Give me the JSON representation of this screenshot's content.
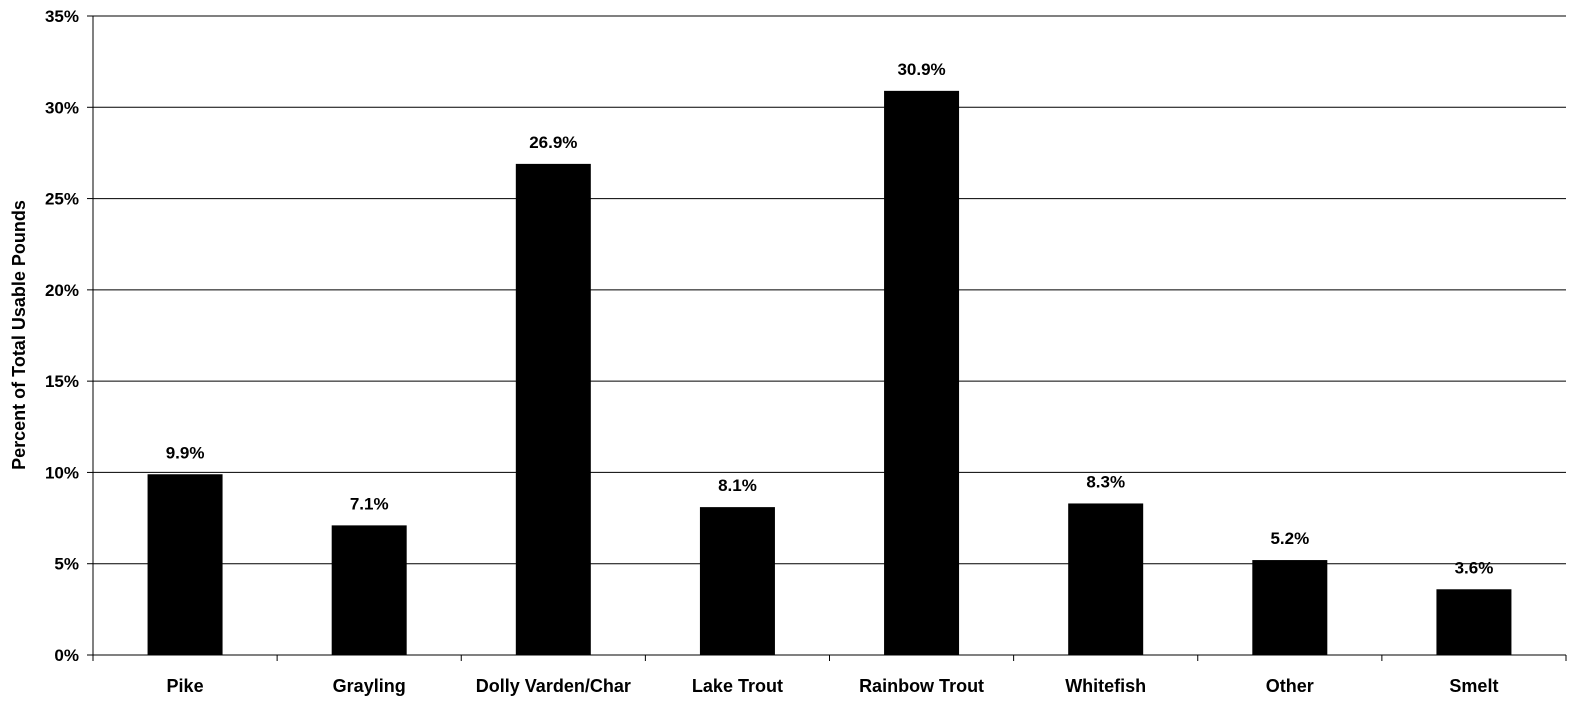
{
  "chart_data": {
    "type": "bar",
    "title": "",
    "xlabel": "",
    "ylabel": "Percent of Total Usable Pounds",
    "ylim": [
      0,
      35
    ],
    "y_ticks": [
      0,
      5,
      10,
      15,
      20,
      25,
      30,
      35
    ],
    "y_tick_labels": [
      "0%",
      "5%",
      "10%",
      "15%",
      "20%",
      "25%",
      "30%",
      "35%"
    ],
    "categories": [
      "Pike",
      "Grayling",
      "Dolly Varden/Char",
      "Lake Trout",
      "Rainbow Trout",
      "Whitefish",
      "Other",
      "Smelt"
    ],
    "values": [
      9.9,
      7.1,
      26.9,
      8.1,
      30.9,
      8.3,
      5.2,
      3.6
    ],
    "data_labels": [
      "9.9%",
      "7.1%",
      "26.9%",
      "8.1%",
      "30.9%",
      "8.3%",
      "5.2%",
      "3.6%"
    ],
    "grid": true,
    "legend": "none",
    "bar_color": "#000000",
    "gridline_color": "#000000"
  }
}
